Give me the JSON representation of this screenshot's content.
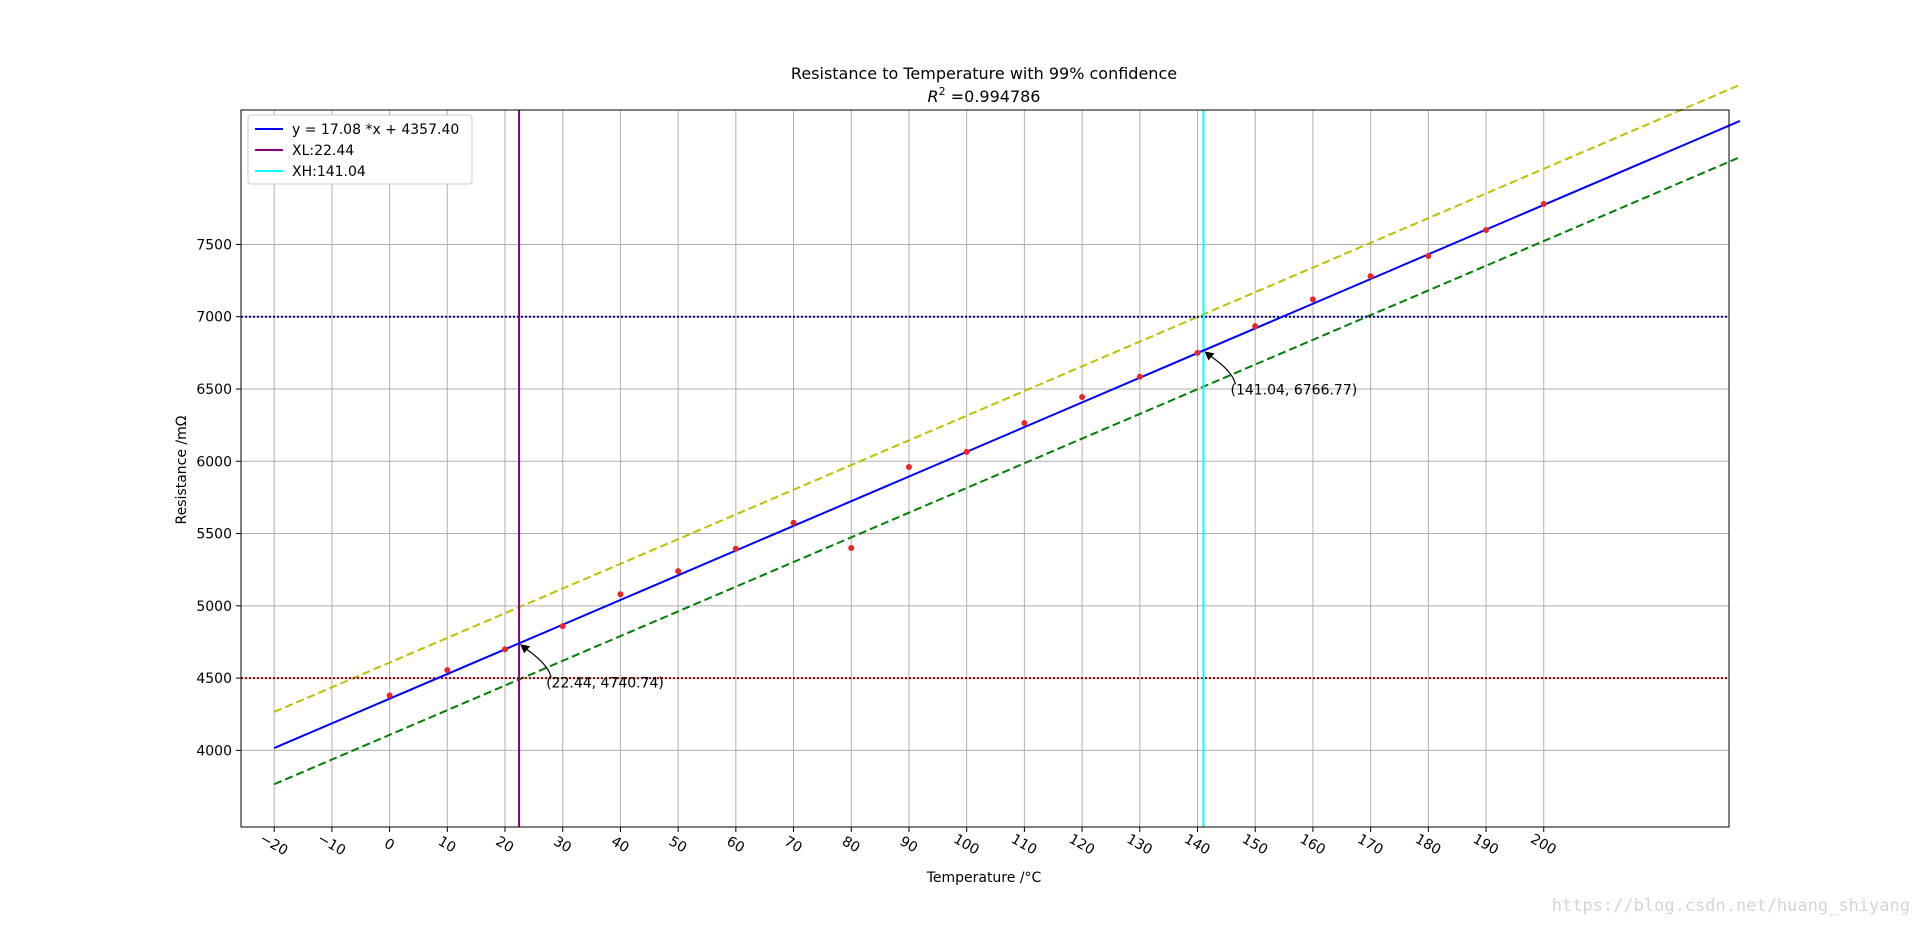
{
  "chart_data": {
    "type": "scatter",
    "title": "Resistance to Temperature with 99% confidence",
    "subtitle_prefix": "R",
    "subtitle_sup": "2",
    "subtitle_value": " =0.994786",
    "xlabel": "Temperature /°C",
    "ylabel": "Resistance /mΩ",
    "xlim": [
      -25.75,
      232.1
    ],
    "ylim": [
      3470,
      8430
    ],
    "xticks": [
      -20,
      -10,
      0,
      10,
      20,
      30,
      40,
      50,
      60,
      70,
      80,
      90,
      100,
      110,
      120,
      130,
      140,
      150,
      160,
      170,
      180,
      190,
      200
    ],
    "xtick_labels": [
      "−20",
      "−10",
      "0",
      "10",
      "20",
      "30",
      "40",
      "50",
      "60",
      "70",
      "80",
      "90",
      "100",
      "110",
      "120",
      "130",
      "140",
      "150",
      "160",
      "170",
      "180",
      "190",
      "200"
    ],
    "yticks": [
      4000,
      4500,
      5000,
      5500,
      6000,
      6500,
      7000,
      7500
    ],
    "grid": true,
    "legend_position": "upper-left",
    "points": {
      "color": "#e8252a",
      "x": [
        0,
        10,
        20,
        30,
        40,
        50,
        60,
        70,
        80,
        90,
        100,
        110,
        120,
        130,
        140,
        150,
        160,
        170,
        180,
        190,
        200
      ],
      "y": [
        4380,
        4555,
        4700,
        4860,
        5080,
        5240,
        5395,
        5575,
        5400,
        5960,
        6065,
        6265,
        6445,
        6585,
        6750,
        6935,
        7120,
        7280,
        7420,
        7600,
        7780
      ]
    },
    "fit": {
      "slope": 17.08,
      "intercept": 4357.4,
      "x_range": [
        -20,
        234
      ],
      "color": "#0000ff",
      "label": "y = 17.08 *x  + 4357.40"
    },
    "upper_band": {
      "offset": 250,
      "color": "#bfbf00"
    },
    "lower_band": {
      "offset": -250,
      "color": "#008000"
    },
    "hlines": [
      {
        "y": 7000,
        "color": "#00008b"
      },
      {
        "y": 4500,
        "color": "#8b0000"
      }
    ],
    "vlines": [
      {
        "x": 22.44,
        "color": "#800080",
        "label": "XL:22.44"
      },
      {
        "x": 141.04,
        "color": "#00ffff",
        "label": "XH:141.04"
      }
    ],
    "annotations": [
      {
        "text": "(22.44, 4740.74)",
        "x": 22.44,
        "y": 4740.74
      },
      {
        "text": "(141.04, 6766.77)",
        "x": 141.04,
        "y": 6766.77
      }
    ]
  },
  "watermark": "https://blog.csdn.net/huang_shiyang"
}
